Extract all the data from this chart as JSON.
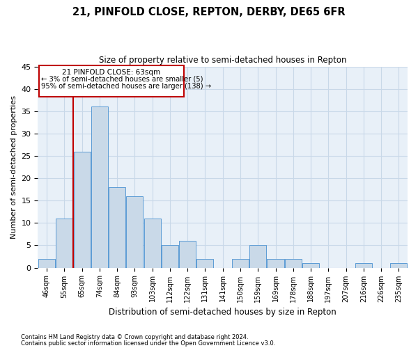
{
  "title": "21, PINFOLD CLOSE, REPTON, DERBY, DE65 6FR",
  "subtitle": "Size of property relative to semi-detached houses in Repton",
  "xlabel": "Distribution of semi-detached houses by size in Repton",
  "ylabel": "Number of semi-detached properties",
  "categories": [
    "46sqm",
    "55sqm",
    "65sqm",
    "74sqm",
    "84sqm",
    "93sqm",
    "103sqm",
    "112sqm",
    "122sqm",
    "131sqm",
    "141sqm",
    "150sqm",
    "159sqm",
    "169sqm",
    "178sqm",
    "188sqm",
    "197sqm",
    "207sqm",
    "216sqm",
    "226sqm",
    "235sqm"
  ],
  "values": [
    2,
    11,
    26,
    36,
    18,
    16,
    11,
    5,
    6,
    2,
    0,
    2,
    5,
    2,
    2,
    1,
    0,
    0,
    1,
    0,
    1
  ],
  "bar_color": "#c9d9e8",
  "bar_edge_color": "#5b9bd5",
  "marker_line_color": "#c00000",
  "marker_label": "21 PINFOLD CLOSE: 63sqm",
  "annotation_line1": "← 3% of semi-detached houses are smaller (5)",
  "annotation_line2": "95% of semi-detached houses are larger (138) →",
  "annotation_box_color": "#c00000",
  "ylim": [
    0,
    45
  ],
  "yticks": [
    0,
    5,
    10,
    15,
    20,
    25,
    30,
    35,
    40,
    45
  ],
  "footnote1": "Contains HM Land Registry data © Crown copyright and database right 2024.",
  "footnote2": "Contains public sector information licensed under the Open Government Licence v3.0.",
  "bg_color": "#ffffff",
  "plot_bg_color": "#e8f0f8",
  "grid_color": "#c8d8e8"
}
